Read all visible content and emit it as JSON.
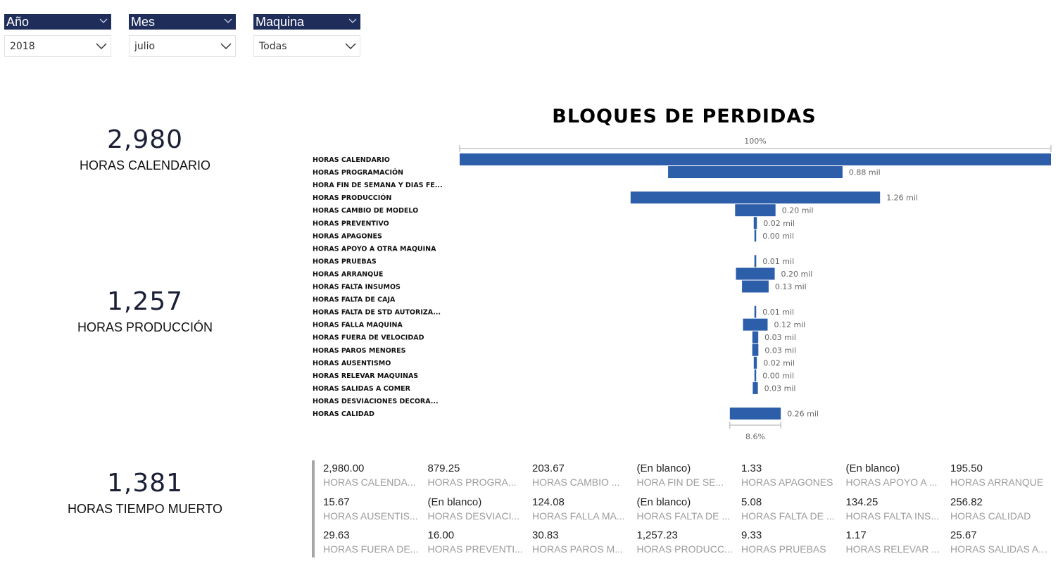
{
  "slicers": [
    {
      "header": "Año",
      "value": "2018"
    },
    {
      "header": "Mes",
      "value": "julio"
    },
    {
      "header": "Maquina",
      "value": "Todas"
    }
  ],
  "kpis": [
    {
      "value": "2,980",
      "label": "HORAS CALENDARIO"
    },
    {
      "value": "1,257",
      "label": "HORAS PRODUCCIÓN"
    },
    {
      "value": "1,381",
      "label": "HORAS TIEMPO MUERTO"
    }
  ],
  "chart_data": {
    "type": "funnel",
    "title": "BLOQUES DE PERDIDAS",
    "top_percent_label": "100%",
    "bottom_percent_label": "8.6%",
    "bar_color": "#2d5eaa",
    "categories": [
      "HORAS CALENDARIO",
      "HORAS PROGRAMACIÓN",
      "HORA FIN DE SEMANA Y DIAS FE...",
      "HORAS PRODUCCIÓN",
      "HORAS CAMBIO DE MODELO",
      "HORAS PREVENTIVO",
      "HORAS APAGONES",
      "HORAS APOYO A OTRA MAQUINA",
      "HORAS PRUEBAS",
      "HORAS ARRANQUE",
      "HORAS FALTA INSUMOS",
      "HORAS FALTA DE CAJA",
      "HORAS FALTA DE STD AUTORIZA...",
      "HORAS FALLA MAQUINA",
      "HORAS FUERA DE VELOCIDAD",
      "HORAS PAROS MENORES",
      "HORAS AUSENTISMO",
      "HORAS RELEVAR MAQUINAS",
      "HORAS SALIDAS A COMER",
      "HORAS DESVIACIONES DECORA...",
      "HORAS CALIDAD"
    ],
    "values": [
      2980,
      879.25,
      null,
      1257.23,
      203.67,
      16.0,
      1.33,
      null,
      9.33,
      195.5,
      134.25,
      null,
      5.08,
      124.08,
      29.63,
      30.83,
      15.67,
      1.17,
      25.67,
      null,
      256.82
    ],
    "data_labels": [
      "",
      "0.88 mil",
      "",
      "1.26 mil",
      "0.20 mil",
      "0.02 mil",
      "0.00 mil",
      "",
      "0.01 mil",
      "0.20 mil",
      "0.13 mil",
      "",
      "0.01 mil",
      "0.12 mil",
      "0.03 mil",
      "0.03 mil",
      "0.02 mil",
      "0.00 mil",
      "0.03 mil",
      "",
      "0.26 mil"
    ]
  },
  "multirow_card": [
    {
      "value": "2,980.00",
      "label": "HORAS CALENDA..."
    },
    {
      "value": "879.25",
      "label": "HORAS PROGRA..."
    },
    {
      "value": "203.67",
      "label": "HORAS CAMBIO ..."
    },
    {
      "value": "(En blanco)",
      "label": "HORA FIN DE SE..."
    },
    {
      "value": "1.33",
      "label": "HORAS APAGONES"
    },
    {
      "value": "(En blanco)",
      "label": "HORAS APOYO A ..."
    },
    {
      "value": "195.50",
      "label": "HORAS ARRANQUE"
    },
    {
      "value": "15.67",
      "label": "HORAS AUSENTIS..."
    },
    {
      "value": "(En blanco)",
      "label": "HORAS DESVIACI..."
    },
    {
      "value": "124.08",
      "label": "HORAS FALLA MA..."
    },
    {
      "value": "(En blanco)",
      "label": "HORAS FALTA DE ..."
    },
    {
      "value": "5.08",
      "label": "HORAS FALTA DE ..."
    },
    {
      "value": "134.25",
      "label": "HORAS FALTA INS..."
    },
    {
      "value": "256.82",
      "label": "HORAS CALIDAD"
    },
    {
      "value": "29.63",
      "label": "HORAS FUERA DE..."
    },
    {
      "value": "16.00",
      "label": "HORAS PREVENTI..."
    },
    {
      "value": "30.83",
      "label": "HORAS PAROS M..."
    },
    {
      "value": "1,257.23",
      "label": "HORAS PRODUCC..."
    },
    {
      "value": "9.33",
      "label": "HORAS PRUEBAS"
    },
    {
      "value": "1.17",
      "label": "HORAS RELEVAR ..."
    },
    {
      "value": "25.67",
      "label": "HORAS SALIDAS A C..."
    }
  ]
}
